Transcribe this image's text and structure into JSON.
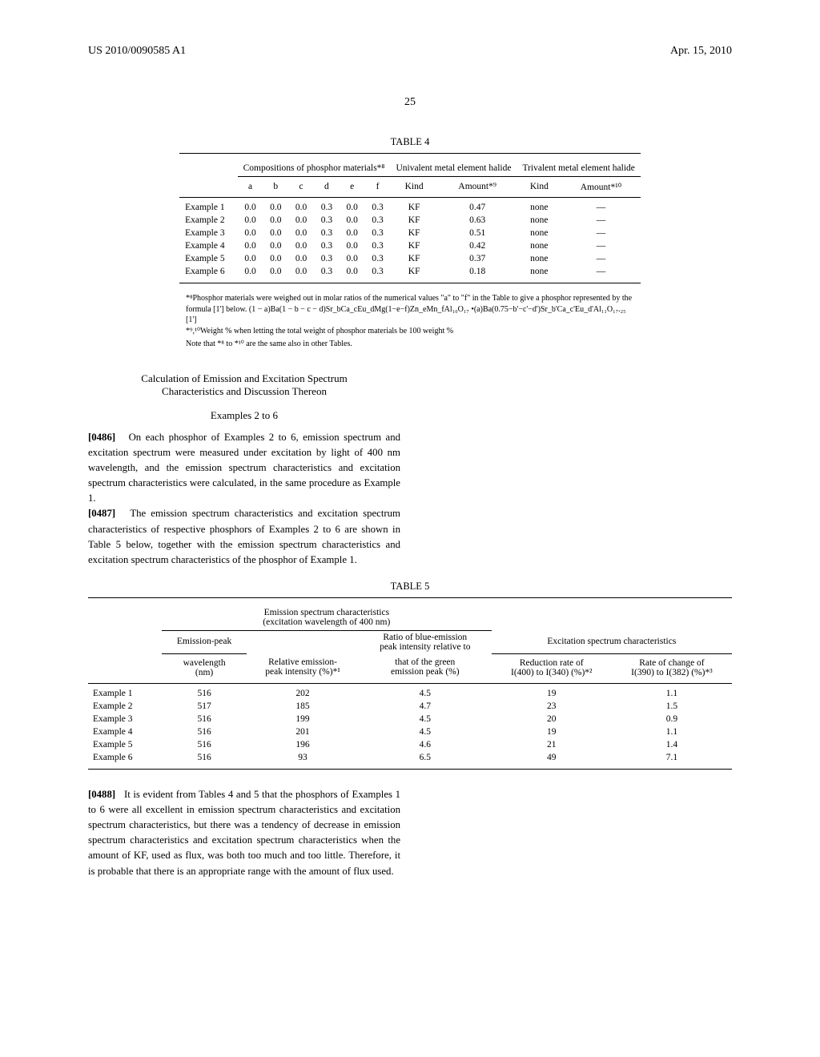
{
  "header": {
    "left": "US 2010/0090585 A1",
    "right": "Apr. 15, 2010",
    "page": "25"
  },
  "table4": {
    "caption": "TABLE 4",
    "group1": "Compositions of phosphor materials*⁸",
    "group2": "Univalent metal element halide",
    "group3": "Trivalent metal element halide",
    "cols": [
      "a",
      "b",
      "c",
      "d",
      "e",
      "f",
      "Kind",
      "Amount*⁹",
      "Kind",
      "Amount*¹⁰"
    ],
    "rows": [
      {
        "label": "Example 1",
        "v": [
          "0.0",
          "0.0",
          "0.0",
          "0.3",
          "0.0",
          "0.3",
          "KF",
          "0.47",
          "none",
          "—"
        ]
      },
      {
        "label": "Example 2",
        "v": [
          "0.0",
          "0.0",
          "0.0",
          "0.3",
          "0.0",
          "0.3",
          "KF",
          "0.63",
          "none",
          "—"
        ]
      },
      {
        "label": "Example 3",
        "v": [
          "0.0",
          "0.0",
          "0.0",
          "0.3",
          "0.0",
          "0.3",
          "KF",
          "0.51",
          "none",
          "—"
        ]
      },
      {
        "label": "Example 4",
        "v": [
          "0.0",
          "0.0",
          "0.0",
          "0.3",
          "0.0",
          "0.3",
          "KF",
          "0.42",
          "none",
          "—"
        ]
      },
      {
        "label": "Example 5",
        "v": [
          "0.0",
          "0.0",
          "0.0",
          "0.3",
          "0.0",
          "0.3",
          "KF",
          "0.37",
          "none",
          "—"
        ]
      },
      {
        "label": "Example 6",
        "v": [
          "0.0",
          "0.0",
          "0.0",
          "0.3",
          "0.0",
          "0.3",
          "KF",
          "0.18",
          "none",
          "—"
        ]
      }
    ]
  },
  "footnotes4": {
    "l1": "*⁸Phosphor materials were weighed out in molar ratios of the numerical values \"a\" to \"f\" in the Table to give a phosphor represented by the formula [1'] below. (1 − a)Ba(1 − b − c − d)Sr_bCa_cEu_dMg(1−e−f)Zn_eMn_fAl₁₀O₁₇ •(a)Ba(0.75−b'−c'−d')Sr_b'Ca_c'Eu_d'Al₁₁O₁₇.₂₅ [1']",
    "l2": "*⁹,¹⁰Weight % when letting the total weight of phosphor materials be 100 weight %",
    "l3": "Note that *⁸ to *¹⁰ are the same also in other Tables."
  },
  "section": {
    "title1": "Calculation of Emission and Excitation Spectrum",
    "title2": "Characteristics and Discussion Thereon",
    "subtitle": "Examples 2 to 6"
  },
  "paras": {
    "p0486": "On each phosphor of Examples 2 to 6, emission spectrum and excitation spectrum were measured under excitation by light of 400 nm wavelength, and the emission spectrum characteristics and excitation spectrum characteristics were calculated, in the same procedure as Example 1.",
    "p0487": "The emission spectrum characteristics and excitation spectrum characteristics of respective phosphors of Examples 2 to 6 are shown in Table 5 below, together with the emission spectrum characteristics and excitation spectrum characteristics of the phosphor of Example 1.",
    "n0486": "[0486]",
    "n0487": "[0487]",
    "p0488": "It is evident from Tables 4 and 5 that the phosphors of Examples 1 to 6 were all excellent in emission spectrum characteristics and excitation spectrum characteristics, but there was a tendency of decrease in emission spectrum characteristics and excitation spectrum characteristics when the amount of KF, used as flux, was both too much and too little. Therefore, it is probable that there is an appropriate range with the amount of flux used.",
    "n0488": "[0488]"
  },
  "table5": {
    "caption": "TABLE 5",
    "grpA1": "Emission spectrum characteristics",
    "grpA2": "(excitation wavelength of 400 nm)",
    "subA": "Emission-peak",
    "subB1": "Ratio of blue-emission",
    "subB2": "peak intensity relative to",
    "grpB": "Excitation spectrum characteristics",
    "cols": {
      "c1a": "wavelength",
      "c1b": "(nm)",
      "c2a": "Relative emission-",
      "c2b": "peak intensity (%)*¹",
      "c3a": "that of the green",
      "c3b": "emission peak (%)",
      "c4a": "Reduction rate of",
      "c4b": "I(400) to I(340) (%)*²",
      "c5a": "Rate of change of",
      "c5b": "I(390) to I(382) (%)*³"
    },
    "rows": [
      {
        "label": "Example 1",
        "v": [
          "516",
          "202",
          "4.5",
          "19",
          "1.1"
        ]
      },
      {
        "label": "Example 2",
        "v": [
          "517",
          "185",
          "4.7",
          "23",
          "1.5"
        ]
      },
      {
        "label": "Example 3",
        "v": [
          "516",
          "199",
          "4.5",
          "20",
          "0.9"
        ]
      },
      {
        "label": "Example 4",
        "v": [
          "516",
          "201",
          "4.5",
          "19",
          "1.1"
        ]
      },
      {
        "label": "Example 5",
        "v": [
          "516",
          "196",
          "4.6",
          "21",
          "1.4"
        ]
      },
      {
        "label": "Example 6",
        "v": [
          "516",
          "93",
          "6.5",
          "49",
          "7.1"
        ]
      }
    ]
  }
}
